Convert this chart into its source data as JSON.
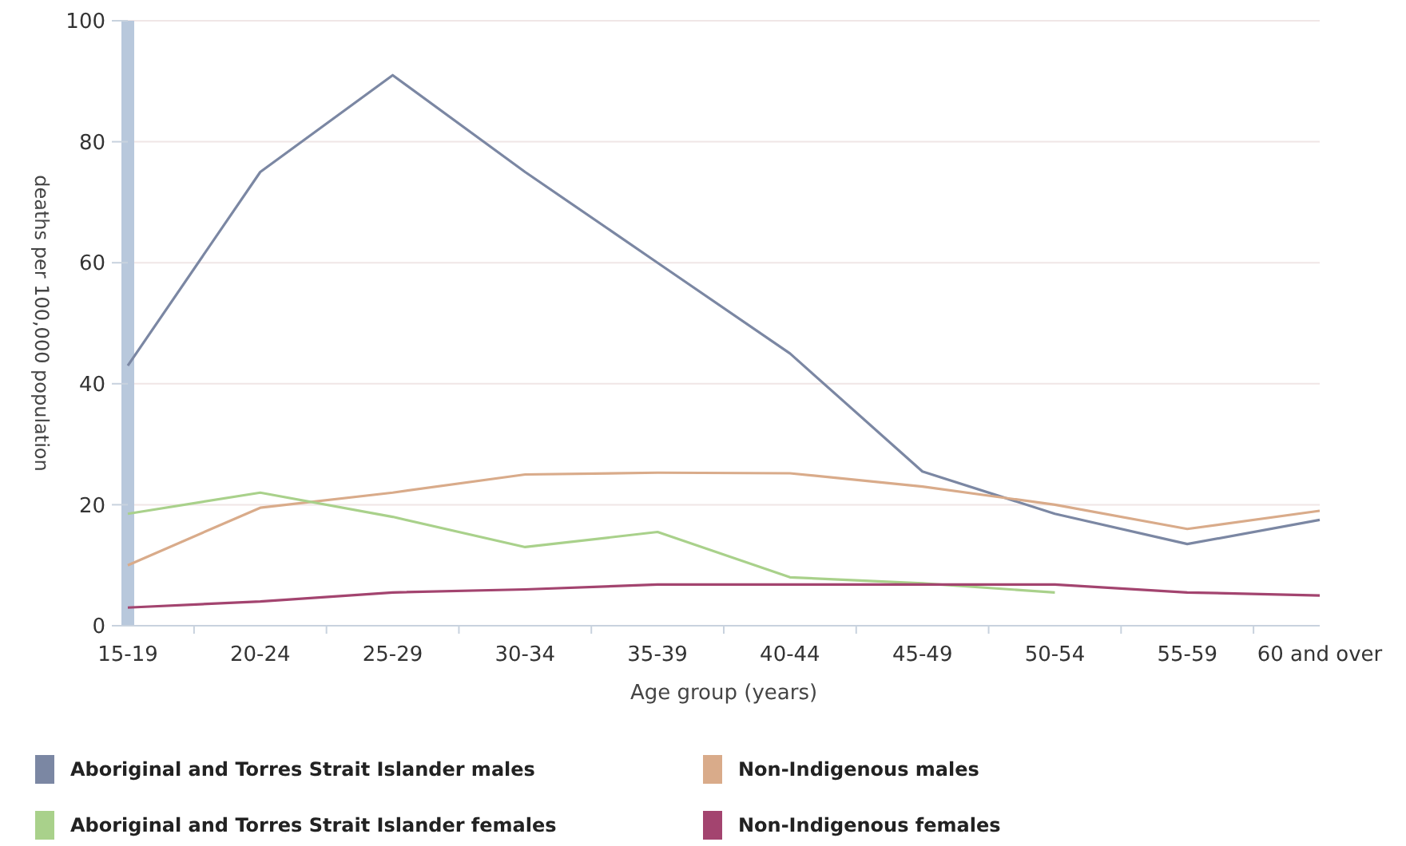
{
  "chart_data": {
    "type": "line",
    "xlabel": "Age group (years)",
    "ylabel": "deaths per 100,000 population",
    "categories": [
      "15-19",
      "20-24",
      "25-29",
      "30-34",
      "35-39",
      "40-44",
      "45-49",
      "50-54",
      "55-59",
      "60 and over"
    ],
    "series": [
      {
        "name": "Aboriginal and Torres Strait Islander males",
        "color": "#7b87a3",
        "values": [
          43,
          75,
          91,
          75,
          60,
          45,
          25.5,
          18.5,
          13.5,
          17.5
        ]
      },
      {
        "name": "Non-Indigenous males",
        "color": "#d9ab8a",
        "values": [
          10,
          19.5,
          22,
          25,
          25.3,
          25.2,
          23,
          20,
          16,
          19
        ]
      },
      {
        "name": "Aboriginal and Torres Strait Islander females",
        "color": "#a9d18b",
        "values": [
          18.5,
          22,
          18,
          13,
          15.5,
          8,
          7,
          5.5,
          null,
          null
        ]
      },
      {
        "name": "Non-Indigenous females",
        "color": "#a3446f",
        "values": [
          3,
          4,
          5.5,
          6,
          6.8,
          6.8,
          6.8,
          6.8,
          5.5,
          5
        ]
      }
    ],
    "ylim": [
      0,
      100
    ],
    "yticks": [
      0,
      20,
      40,
      60,
      80,
      100
    ],
    "grid": "y",
    "legend": "bottom",
    "marker": "none",
    "line_style": "solid"
  }
}
